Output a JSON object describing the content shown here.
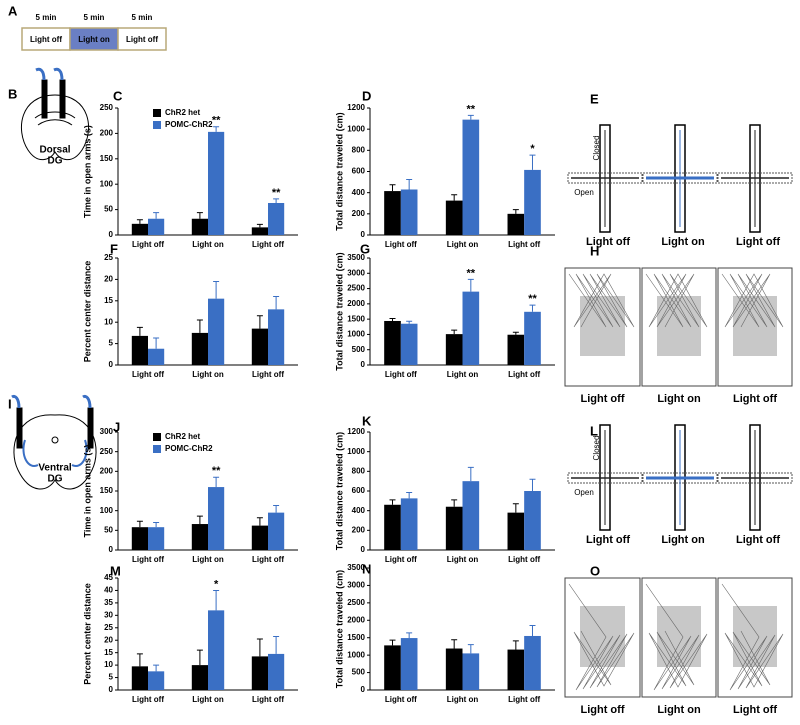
{
  "chart_data": [
    {
      "type": "bar",
      "ylabel": "Time in open arms (s)",
      "categories": [
        "Light off",
        "Light on",
        "Light off"
      ],
      "ylim": [
        0,
        250
      ],
      "yticks": [
        0,
        50,
        100,
        150,
        200,
        250
      ],
      "series": [
        {
          "name": "ChR2 het",
          "color": "#000000",
          "values": [
            22,
            32,
            15
          ],
          "errors": [
            8,
            12,
            6
          ]
        },
        {
          "name": "POMC-ChR2",
          "color": "#3a6fc4",
          "values": [
            32,
            203,
            63
          ],
          "errors": [
            12,
            10,
            8
          ],
          "stars": [
            null,
            "**",
            "**"
          ]
        }
      ]
    },
    {
      "type": "bar",
      "ylabel": "Total distance traveled (cm)",
      "categories": [
        "Light off",
        "Light on",
        "Light off"
      ],
      "ylim": [
        0,
        1200
      ],
      "yticks": [
        0,
        200,
        400,
        600,
        800,
        1000,
        1200
      ],
      "series": [
        {
          "color": "#000000",
          "values": [
            415,
            325,
            200
          ],
          "errors": [
            60,
            55,
            40
          ]
        },
        {
          "color": "#3a6fc4",
          "values": [
            430,
            1090,
            615
          ],
          "errors": [
            95,
            40,
            140
          ],
          "stars": [
            null,
            "**",
            "*"
          ]
        }
      ]
    },
    {
      "type": "bar",
      "ylabel": "Percent center distance",
      "categories": [
        "Light off",
        "Light on",
        "Light off"
      ],
      "ylim": [
        0,
        25
      ],
      "yticks": [
        0,
        5,
        10,
        15,
        20,
        25
      ],
      "series": [
        {
          "color": "#000000",
          "values": [
            6.8,
            7.5,
            8.5
          ],
          "errors": [
            2,
            3,
            3
          ]
        },
        {
          "color": "#3a6fc4",
          "values": [
            3.8,
            15.5,
            13
          ],
          "errors": [
            2.5,
            4,
            3
          ]
        }
      ]
    },
    {
      "type": "bar",
      "ylabel": "Total distance traveled (cm)",
      "categories": [
        "Light off",
        "Light on",
        "Light off"
      ],
      "ylim": [
        0,
        3500
      ],
      "yticks": [
        0,
        500,
        1000,
        1500,
        2000,
        2500,
        3000,
        3500
      ],
      "series": [
        {
          "color": "#000000",
          "values": [
            1440,
            1010,
            990
          ],
          "errors": [
            80,
            130,
            80
          ]
        },
        {
          "color": "#3a6fc4",
          "values": [
            1350,
            2400,
            1740
          ],
          "errors": [
            80,
            400,
            220
          ],
          "stars": [
            null,
            "**",
            "**"
          ]
        }
      ]
    },
    {
      "type": "bar",
      "ylabel": "Time in open arms (s)",
      "categories": [
        "Light off",
        "Light on",
        "Light off"
      ],
      "ylim": [
        0,
        300
      ],
      "yticks": [
        0,
        50,
        100,
        150,
        200,
        250,
        300
      ],
      "series": [
        {
          "name": "ChR2 het",
          "color": "#000000",
          "values": [
            58,
            66,
            62
          ],
          "errors": [
            15,
            20,
            20
          ]
        },
        {
          "name": "POMC-ChR2",
          "color": "#3a6fc4",
          "values": [
            58,
            160,
            95
          ],
          "errors": [
            12,
            25,
            18
          ],
          "stars": [
            null,
            "**",
            null
          ]
        }
      ]
    },
    {
      "type": "bar",
      "ylabel": "Total distance traveled (cm)",
      "categories": [
        "Light off",
        "Light on",
        "Light off"
      ],
      "ylim": [
        0,
        1200
      ],
      "yticks": [
        0,
        200,
        400,
        600,
        800,
        1000,
        1200
      ],
      "series": [
        {
          "color": "#000000",
          "values": [
            460,
            440,
            380
          ],
          "errors": [
            50,
            70,
            90
          ]
        },
        {
          "color": "#3a6fc4",
          "values": [
            525,
            700,
            600
          ],
          "errors": [
            60,
            140,
            120
          ]
        }
      ]
    },
    {
      "type": "bar",
      "ylabel": "Percent center distance",
      "categories": [
        "Light off",
        "Light on",
        "Light off"
      ],
      "ylim": [
        0,
        45
      ],
      "yticks": [
        0,
        5,
        10,
        15,
        20,
        25,
        30,
        35,
        40,
        45
      ],
      "series": [
        {
          "color": "#000000",
          "values": [
            9.5,
            10,
            13.5
          ],
          "errors": [
            5,
            6,
            7
          ]
        },
        {
          "color": "#3a6fc4",
          "values": [
            7.5,
            32,
            14.5
          ],
          "errors": [
            2.5,
            8,
            7
          ],
          "stars": [
            null,
            "*",
            null
          ]
        }
      ]
    },
    {
      "type": "bar",
      "ylabel": "Total distance traveled (cm)",
      "categories": [
        "Light off",
        "Light on",
        "Light off"
      ],
      "ylim": [
        0,
        3500
      ],
      "yticks": [
        0,
        500,
        1000,
        1500,
        2000,
        2500,
        3000,
        3500
      ],
      "series": [
        {
          "color": "#000000",
          "values": [
            1280,
            1190,
            1160
          ],
          "errors": [
            150,
            250,
            250
          ]
        },
        {
          "color": "#3a6fc4",
          "values": [
            1490,
            1050,
            1550
          ],
          "errors": [
            150,
            250,
            300
          ]
        }
      ]
    }
  ],
  "labels": {
    "panels": [
      "A",
      "B",
      "C",
      "D",
      "E",
      "F",
      "G",
      "H",
      "I",
      "J",
      "K",
      "L",
      "M",
      "N",
      "O"
    ],
    "timeline": {
      "durations": [
        "5 min",
        "5 min",
        "5 min"
      ],
      "phases": [
        "Light off",
        "Light on",
        "Light off"
      ]
    },
    "dorsal": [
      "Dorsal",
      "DG"
    ],
    "ventral": [
      "Ventral",
      "DG"
    ],
    "maze_arms": {
      "E": [
        "Closed",
        "Open"
      ],
      "L": [
        "Closed",
        "Open"
      ]
    },
    "captions": {
      "E": [
        "Light off",
        "Light on",
        "Light off"
      ],
      "H": [
        "Light off",
        "Light on",
        "Light off"
      ],
      "L": [
        "Light off",
        "Light on",
        "Light off"
      ],
      "O": [
        "Light off",
        "Light on",
        "Light off"
      ]
    }
  }
}
